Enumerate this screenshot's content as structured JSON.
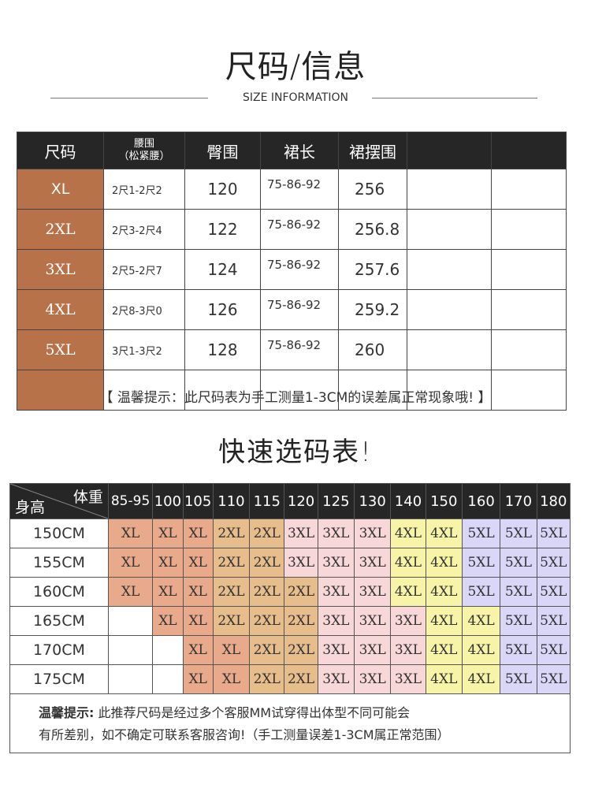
{
  "header": {
    "title": "尺码/信息",
    "subtitle": "SIZE INFORMATION"
  },
  "size_table": {
    "headers": [
      "尺码",
      "腰围\n（松紧腰）",
      "臀围",
      "裙长",
      "裙摆围",
      "",
      ""
    ],
    "header_waist_line1": "腰围",
    "header_waist_line2": "（松紧腰）",
    "rows": [
      {
        "size": "XL",
        "waist": "2尺1-2尺2",
        "hip": "120",
        "length": "75-86-92",
        "hem": "256"
      },
      {
        "size": "2XL",
        "waist": "2尺3-2尺4",
        "hip": "122",
        "length": "75-86-92",
        "hem": "256.8"
      },
      {
        "size": "3XL",
        "waist": "2尺5-2尺7",
        "hip": "124",
        "length": "75-86-92",
        "hem": "257.6"
      },
      {
        "size": "4XL",
        "waist": "2尺8-3尺0",
        "hip": "126",
        "length": "75-86-92",
        "hem": "259.2"
      },
      {
        "size": "5XL",
        "waist": "3尺1-3尺2",
        "hip": "128",
        "length": "75-86-92",
        "hem": "260"
      },
      {
        "size": "",
        "waist": "",
        "hip": "",
        "length": "",
        "hem": ""
      }
    ]
  },
  "note": "【 温馨提示：此尺码表为手工测量1-3CM的误差属正常现象哦! 】",
  "quick_title": "快速选码表!",
  "quick_table": {
    "corner_weight": "体重",
    "corner_height": "身高",
    "weights": [
      "85-95",
      "100",
      "105",
      "110",
      "115",
      "120",
      "125",
      "130",
      "140",
      "150",
      "160",
      "170",
      "180"
    ],
    "colors": {
      "c1": "#e9a98b",
      "c2": "#e8bd8c",
      "c3": "#f7d7d7",
      "c4": "#f7f4a8",
      "c5": "#d9d6f7"
    },
    "rows": [
      {
        "height": "150CM",
        "cells": [
          [
            "XL",
            "c1"
          ],
          [
            "XL",
            "c1"
          ],
          [
            "XL",
            "c1"
          ],
          [
            "2XL",
            "c2"
          ],
          [
            "2XL",
            "c2"
          ],
          [
            "3XL",
            "c3"
          ],
          [
            "3XL",
            "c3"
          ],
          [
            "3XL",
            "c3"
          ],
          [
            "4XL",
            "c4"
          ],
          [
            "4XL",
            "c4"
          ],
          [
            "5XL",
            "c5"
          ],
          [
            "5XL",
            "c5"
          ],
          [
            "5XL",
            "c5"
          ]
        ]
      },
      {
        "height": "155CM",
        "cells": [
          [
            "XL",
            "c1"
          ],
          [
            "XL",
            "c1"
          ],
          [
            "XL",
            "c1"
          ],
          [
            "2XL",
            "c2"
          ],
          [
            "2XL",
            "c2"
          ],
          [
            "3XL",
            "c3"
          ],
          [
            "3XL",
            "c3"
          ],
          [
            "3XL",
            "c3"
          ],
          [
            "4XL",
            "c4"
          ],
          [
            "4XL",
            "c4"
          ],
          [
            "5XL",
            "c5"
          ],
          [
            "5XL",
            "c5"
          ],
          [
            "5XL",
            "c5"
          ]
        ]
      },
      {
        "height": "160CM",
        "cells": [
          [
            "XL",
            "c1"
          ],
          [
            "XL",
            "c1"
          ],
          [
            "XL",
            "c1"
          ],
          [
            "2XL",
            "c2"
          ],
          [
            "2XL",
            "c2"
          ],
          [
            "2XL",
            "c2"
          ],
          [
            "3XL",
            "c3"
          ],
          [
            "3XL",
            "c3"
          ],
          [
            "4XL",
            "c4"
          ],
          [
            "4XL",
            "c4"
          ],
          [
            "5XL",
            "c5"
          ],
          [
            "5XL",
            "c5"
          ],
          [
            "5XL",
            "c5"
          ]
        ]
      },
      {
        "height": "165CM",
        "cells": [
          [
            "",
            "c0"
          ],
          [
            "XL",
            "c1"
          ],
          [
            "XL",
            "c1"
          ],
          [
            "2XL",
            "c2"
          ],
          [
            "2XL",
            "c2"
          ],
          [
            "2XL",
            "c2"
          ],
          [
            "3XL",
            "c3"
          ],
          [
            "3XL",
            "c3"
          ],
          [
            "3XL",
            "c3"
          ],
          [
            "4XL",
            "c4"
          ],
          [
            "4XL",
            "c4"
          ],
          [
            "5XL",
            "c5"
          ],
          [
            "5XL",
            "c5"
          ]
        ]
      },
      {
        "height": "170CM",
        "cells": [
          [
            "",
            "c0"
          ],
          [
            "",
            "c0"
          ],
          [
            "XL",
            "c1"
          ],
          [
            "XL",
            "c1"
          ],
          [
            "2XL",
            "c2"
          ],
          [
            "2XL",
            "c2"
          ],
          [
            "3XL",
            "c3"
          ],
          [
            "3XL",
            "c3"
          ],
          [
            "3XL",
            "c3"
          ],
          [
            "4XL",
            "c4"
          ],
          [
            "4XL",
            "c4"
          ],
          [
            "5XL",
            "c5"
          ],
          [
            "5XL",
            "c5"
          ]
        ]
      },
      {
        "height": "175CM",
        "cells": [
          [
            "",
            "c0"
          ],
          [
            "",
            "c0"
          ],
          [
            "XL",
            "c1"
          ],
          [
            "XL",
            "c1"
          ],
          [
            "2XL",
            "c2"
          ],
          [
            "2XL",
            "c2"
          ],
          [
            "3XL",
            "c3"
          ],
          [
            "3XL",
            "c3"
          ],
          [
            "3XL",
            "c3"
          ],
          [
            "4XL",
            "c4"
          ],
          [
            "4XL",
            "c4"
          ],
          [
            "5XL",
            "c5"
          ],
          [
            "5XL",
            "c5"
          ]
        ]
      }
    ],
    "tip_label": "温馨提示:",
    "tip_line1": "此推荐尺码是经过多个客服MM试穿得出体型不同可能会",
    "tip_line2": "有所差别，如不确定可联系客服咨询!（手工测量误差1-3CM属正常范围）"
  }
}
